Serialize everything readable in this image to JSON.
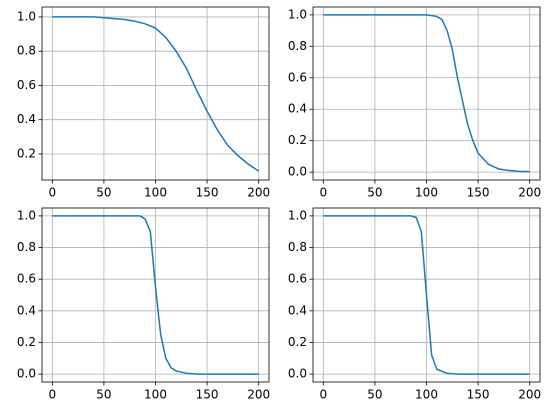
{
  "chart_data": [
    {
      "type": "line",
      "color": "#1f77b4",
      "grid": true,
      "x": [
        0,
        10,
        20,
        30,
        40,
        50,
        60,
        70,
        80,
        90,
        100,
        110,
        120,
        130,
        140,
        150,
        160,
        170,
        180,
        190,
        200
      ],
      "values": [
        1.0,
        1.0,
        1.0,
        1.0,
        1.0,
        0.995,
        0.99,
        0.985,
        0.975,
        0.96,
        0.935,
        0.88,
        0.8,
        0.7,
        0.57,
        0.45,
        0.34,
        0.25,
        0.19,
        0.14,
        0.1
      ],
      "xlim": [
        -10,
        210
      ],
      "ylim": [
        0.048,
        1.058
      ],
      "xticks": [
        0,
        50,
        100,
        150,
        200
      ],
      "yticks": [
        0.2,
        0.4,
        0.6,
        0.8,
        {
          "value": 1,
          "label": "1.0"
        }
      ]
    },
    {
      "type": "line",
      "color": "#1f77b4",
      "grid": true,
      "x": [
        0,
        50,
        100,
        110,
        115,
        120,
        125,
        130,
        135,
        140,
        145,
        150,
        160,
        170,
        180,
        190,
        200
      ],
      "values": [
        1.0,
        1.0,
        1.0,
        0.99,
        0.97,
        0.9,
        0.78,
        0.6,
        0.45,
        0.3,
        0.2,
        0.12,
        0.05,
        0.02,
        0.01,
        0.005,
        0.003
      ],
      "xlim": [
        -10,
        210
      ],
      "ylim": [
        -0.05,
        1.05
      ],
      "xticks": [
        0,
        50,
        100,
        150,
        200
      ],
      "yticks": [
        {
          "value": 0,
          "label": "0.0"
        },
        0.2,
        0.4,
        0.6,
        0.8,
        {
          "value": 1,
          "label": "1.0"
        }
      ]
    },
    {
      "type": "line",
      "color": "#1f77b4",
      "grid": true,
      "x": [
        0,
        50,
        85,
        90,
        95,
        100,
        105,
        110,
        115,
        120,
        130,
        140,
        200
      ],
      "values": [
        1.0,
        1.0,
        1.0,
        0.98,
        0.9,
        0.55,
        0.25,
        0.1,
        0.04,
        0.02,
        0.005,
        0,
        0
      ],
      "xlim": [
        -10,
        210
      ],
      "ylim": [
        -0.05,
        1.05
      ],
      "xticks": [
        0,
        50,
        100,
        150,
        200
      ],
      "yticks": [
        {
          "value": 0,
          "label": "0.0"
        },
        0.2,
        0.4,
        0.6,
        0.8,
        {
          "value": 1,
          "label": "1.0"
        }
      ]
    },
    {
      "type": "line",
      "color": "#1f77b4",
      "grid": true,
      "x": [
        0,
        50,
        85,
        90,
        95,
        100,
        105,
        110,
        120,
        130,
        200
      ],
      "values": [
        1.0,
        1.0,
        1.0,
        0.99,
        0.9,
        0.5,
        0.12,
        0.03,
        0.005,
        0,
        0
      ],
      "xlim": [
        -10,
        210
      ],
      "ylim": [
        -0.05,
        1.05
      ],
      "xticks": [
        0,
        50,
        100,
        150,
        200
      ],
      "yticks": [
        {
          "value": 0,
          "label": "0.0"
        },
        0.2,
        0.4,
        0.6,
        0.8,
        {
          "value": 1,
          "label": "1.0"
        }
      ]
    }
  ]
}
